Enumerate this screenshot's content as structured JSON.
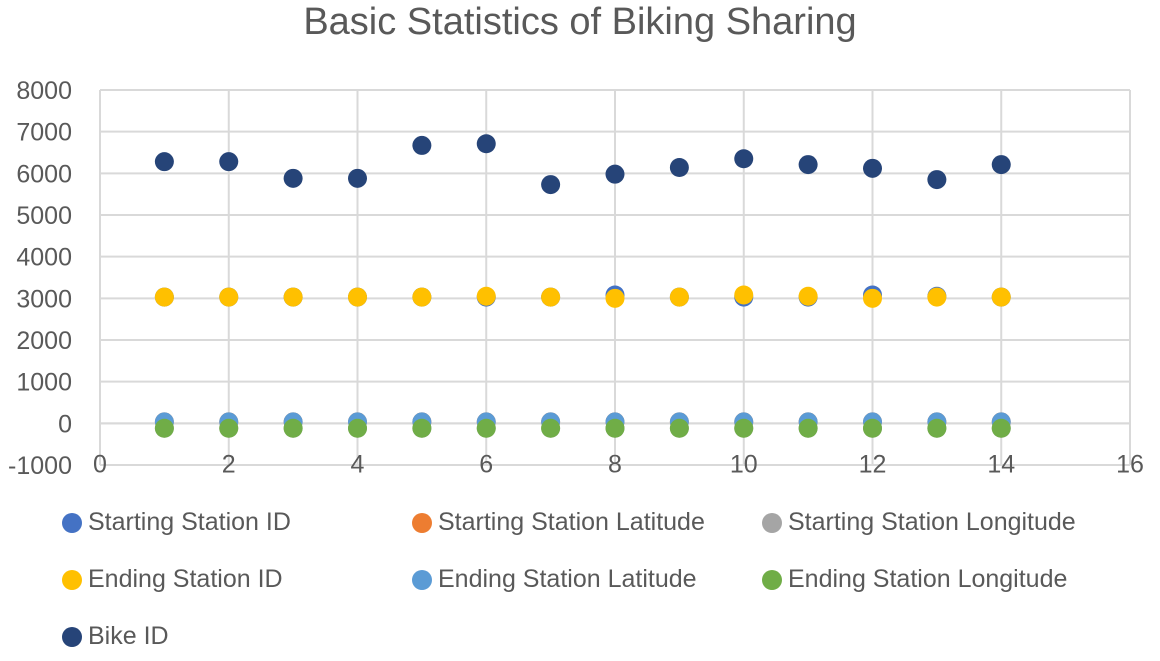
{
  "chart_data": {
    "type": "scatter",
    "title": "Basic Statistics of Biking Sharing",
    "xlabel": "",
    "ylabel": "",
    "xlim": [
      0,
      16
    ],
    "ylim": [
      -1000,
      8000
    ],
    "x_ticks": [
      0,
      2,
      4,
      6,
      8,
      10,
      12,
      14,
      16
    ],
    "y_ticks": [
      -1000,
      0,
      1000,
      2000,
      3000,
      4000,
      5000,
      6000,
      7000,
      8000
    ],
    "grid": true,
    "legend_position": "bottom",
    "x": [
      1,
      2,
      3,
      4,
      5,
      6,
      7,
      8,
      9,
      10,
      11,
      12,
      13,
      14
    ],
    "series": [
      {
        "name": "Starting Station ID",
        "color": "#4472C4",
        "values": [
          3030,
          3030,
          3030,
          3030,
          3030,
          3030,
          3030,
          3080,
          3030,
          3030,
          3030,
          3080,
          3050,
          3030
        ]
      },
      {
        "name": "Starting Station Latitude",
        "color": "#ED7D31",
        "values": [
          34,
          34,
          34,
          34,
          34,
          34,
          34,
          34,
          34,
          34,
          34,
          34,
          34,
          34
        ]
      },
      {
        "name": "Starting Station Longitude",
        "color": "#A5A5A5",
        "values": [
          -118,
          -118,
          -118,
          -118,
          -118,
          -118,
          -118,
          -118,
          -118,
          -118,
          -118,
          -118,
          -118,
          -118
        ]
      },
      {
        "name": "Ending Station ID",
        "color": "#FFC000",
        "values": [
          3030,
          3030,
          3030,
          3030,
          3030,
          3050,
          3030,
          3000,
          3030,
          3080,
          3050,
          3000,
          3030,
          3030
        ]
      },
      {
        "name": "Ending Station Latitude",
        "color": "#5B9BD5",
        "values": [
          34,
          34,
          34,
          34,
          34,
          34,
          34,
          34,
          34,
          34,
          34,
          34,
          34,
          34
        ]
      },
      {
        "name": "Ending Station Longitude",
        "color": "#70AD47",
        "values": [
          -118,
          -118,
          -118,
          -118,
          -118,
          -118,
          -118,
          -118,
          -118,
          -118,
          -118,
          -118,
          -118,
          -118
        ]
      },
      {
        "name": "Bike ID",
        "color": "#264478",
        "values": [
          6280,
          6280,
          5880,
          5880,
          6670,
          6710,
          5730,
          5980,
          6140,
          6350,
          6210,
          6120,
          5850,
          6210
        ]
      }
    ]
  }
}
